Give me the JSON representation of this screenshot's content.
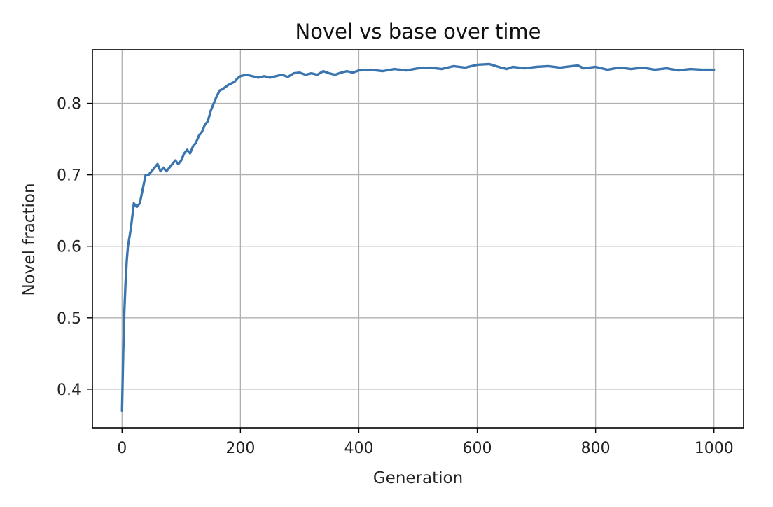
{
  "chart_data": {
    "type": "line",
    "title": "Novel vs base over time",
    "xlabel": "Generation",
    "ylabel": "Novel fraction",
    "xlim": [
      -50,
      1050
    ],
    "ylim": [
      0.346,
      0.875
    ],
    "grid": true,
    "legend": "none",
    "xticks": [
      0,
      200,
      400,
      600,
      800,
      1000
    ],
    "xtick_labels": [
      "0",
      "200",
      "400",
      "600",
      "800",
      "1000"
    ],
    "yticks": [
      0.4,
      0.5,
      0.6,
      0.7,
      0.8
    ],
    "ytick_labels": [
      "0.4",
      "0.5",
      "0.6",
      "0.7",
      "0.8"
    ],
    "series": [
      {
        "name": "Novel fraction",
        "color": "#3a75b0",
        "x": [
          0,
          2,
          4,
          6,
          8,
          10,
          15,
          20,
          25,
          30,
          35,
          40,
          45,
          50,
          55,
          60,
          65,
          70,
          75,
          80,
          85,
          90,
          95,
          100,
          105,
          110,
          115,
          120,
          125,
          130,
          135,
          140,
          145,
          150,
          155,
          160,
          165,
          170,
          175,
          180,
          185,
          190,
          195,
          200,
          210,
          220,
          230,
          240,
          250,
          260,
          270,
          280,
          290,
          300,
          310,
          320,
          330,
          340,
          350,
          360,
          370,
          380,
          390,
          400,
          420,
          440,
          460,
          480,
          500,
          520,
          540,
          560,
          580,
          600,
          620,
          640,
          650,
          660,
          680,
          700,
          720,
          740,
          760,
          770,
          780,
          800,
          820,
          840,
          860,
          880,
          900,
          920,
          940,
          960,
          980,
          1000
        ],
        "y": [
          0.37,
          0.45,
          0.51,
          0.55,
          0.58,
          0.6,
          0.625,
          0.66,
          0.655,
          0.66,
          0.68,
          0.7,
          0.7,
          0.705,
          0.71,
          0.715,
          0.705,
          0.71,
          0.705,
          0.71,
          0.715,
          0.72,
          0.715,
          0.72,
          0.73,
          0.735,
          0.73,
          0.74,
          0.745,
          0.755,
          0.76,
          0.77,
          0.775,
          0.79,
          0.8,
          0.81,
          0.818,
          0.82,
          0.823,
          0.826,
          0.828,
          0.83,
          0.835,
          0.838,
          0.84,
          0.838,
          0.836,
          0.838,
          0.836,
          0.838,
          0.84,
          0.837,
          0.842,
          0.843,
          0.84,
          0.842,
          0.84,
          0.845,
          0.842,
          0.84,
          0.843,
          0.845,
          0.843,
          0.846,
          0.847,
          0.845,
          0.848,
          0.846,
          0.849,
          0.85,
          0.848,
          0.852,
          0.85,
          0.854,
          0.855,
          0.85,
          0.848,
          0.851,
          0.849,
          0.851,
          0.852,
          0.85,
          0.852,
          0.853,
          0.849,
          0.851,
          0.847,
          0.85,
          0.848,
          0.85,
          0.847,
          0.849,
          0.846,
          0.848,
          0.847,
          0.847
        ]
      }
    ]
  }
}
